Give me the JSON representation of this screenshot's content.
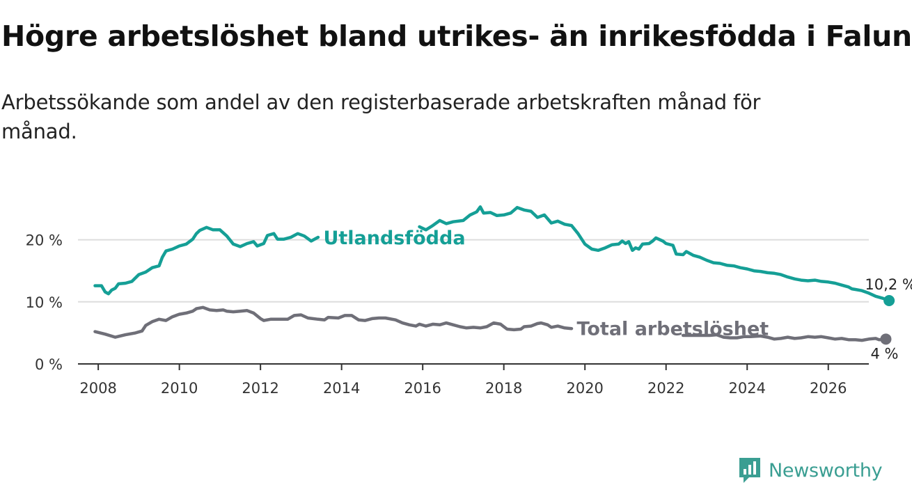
{
  "brand": {
    "name": "Newsworthy",
    "color": "#3a9e92"
  },
  "chart_data": {
    "type": "line",
    "title": "Högre arbetslöshet bland utrikes- än inrikesfödda i Falun",
    "subtitle": "Arbetssökande som andel av den registerbaserade arbetskraften månad för månad.",
    "xlabel": "",
    "ylabel": "",
    "xlim": [
      2007.5,
      2027.0
    ],
    "ylim": [
      0,
      25
    ],
    "grid": true,
    "x_ticks": [
      2008,
      2010,
      2012,
      2014,
      2016,
      2018,
      2020,
      2022,
      2024,
      2026
    ],
    "x_tick_labels": [
      "2008",
      "2010",
      "2012",
      "2014",
      "2016",
      "2018",
      "2020",
      "2022",
      "2024",
      "2026"
    ],
    "y_ticks": [
      0,
      10,
      20
    ],
    "y_tick_labels": [
      "0 %",
      "10 %",
      "20 %"
    ],
    "series": [
      {
        "name": "Utlandsfödda",
        "color": "#159f96",
        "end_label": "10,2 %",
        "points": [
          [
            2007.92,
            12.6
          ],
          [
            2008.08,
            12.6
          ],
          [
            2008.17,
            11.6
          ],
          [
            2008.25,
            11.3
          ],
          [
            2008.33,
            11.9
          ],
          [
            2008.42,
            12.2
          ],
          [
            2008.5,
            12.9
          ],
          [
            2008.67,
            13.0
          ],
          [
            2008.83,
            13.3
          ],
          [
            2009.0,
            14.4
          ],
          [
            2009.17,
            14.8
          ],
          [
            2009.33,
            15.5
          ],
          [
            2009.5,
            15.8
          ],
          [
            2009.58,
            17.2
          ],
          [
            2009.67,
            18.2
          ],
          [
            2009.83,
            18.5
          ],
          [
            2010.0,
            19.0
          ],
          [
            2010.17,
            19.3
          ],
          [
            2010.33,
            20.1
          ],
          [
            2010.42,
            21.0
          ],
          [
            2010.5,
            21.5
          ],
          [
            2010.67,
            22.0
          ],
          [
            2010.83,
            21.6
          ],
          [
            2011.0,
            21.6
          ],
          [
            2011.17,
            20.6
          ],
          [
            2011.33,
            19.3
          ],
          [
            2011.5,
            18.9
          ],
          [
            2011.67,
            19.4
          ],
          [
            2011.83,
            19.7
          ],
          [
            2011.92,
            19.0
          ],
          [
            2012.08,
            19.4
          ],
          [
            2012.17,
            20.7
          ],
          [
            2012.33,
            21.0
          ],
          [
            2012.42,
            20.1
          ],
          [
            2012.58,
            20.1
          ],
          [
            2012.75,
            20.4
          ],
          [
            2012.92,
            21.0
          ],
          [
            2013.08,
            20.6
          ],
          [
            2013.25,
            19.8
          ],
          [
            2013.42,
            20.4
          ],
          null,
          [
            2015.92,
            22.1
          ],
          [
            2016.08,
            21.6
          ],
          [
            2016.25,
            22.3
          ],
          [
            2016.42,
            23.1
          ],
          [
            2016.58,
            22.6
          ],
          [
            2016.75,
            22.9
          ],
          [
            2017.0,
            23.1
          ],
          [
            2017.17,
            24.0
          ],
          [
            2017.33,
            24.5
          ],
          [
            2017.42,
            25.3
          ],
          [
            2017.5,
            24.3
          ],
          [
            2017.67,
            24.4
          ],
          [
            2017.83,
            23.9
          ],
          [
            2018.0,
            24.0
          ],
          [
            2018.17,
            24.3
          ],
          [
            2018.33,
            25.2
          ],
          [
            2018.5,
            24.8
          ],
          [
            2018.67,
            24.6
          ],
          [
            2018.83,
            23.6
          ],
          [
            2019.0,
            24.0
          ],
          [
            2019.17,
            22.7
          ],
          [
            2019.33,
            23.0
          ],
          [
            2019.5,
            22.5
          ],
          [
            2019.67,
            22.3
          ],
          [
            2019.83,
            21.0
          ],
          [
            2020.0,
            19.3
          ],
          [
            2020.17,
            18.5
          ],
          [
            2020.33,
            18.3
          ],
          [
            2020.5,
            18.7
          ],
          [
            2020.67,
            19.2
          ],
          [
            2020.83,
            19.3
          ],
          [
            2020.92,
            19.8
          ],
          [
            2021.0,
            19.4
          ],
          [
            2021.08,
            19.7
          ],
          [
            2021.17,
            18.3
          ],
          [
            2021.25,
            18.7
          ],
          [
            2021.33,
            18.5
          ],
          [
            2021.42,
            19.3
          ],
          [
            2021.58,
            19.4
          ],
          [
            2021.67,
            19.8
          ],
          [
            2021.75,
            20.3
          ],
          [
            2021.92,
            19.8
          ],
          [
            2022.0,
            19.4
          ],
          [
            2022.17,
            19.1
          ],
          [
            2022.25,
            17.7
          ],
          [
            2022.42,
            17.6
          ],
          [
            2022.5,
            18.1
          ],
          [
            2022.67,
            17.5
          ],
          [
            2022.83,
            17.2
          ],
          [
            2023.0,
            16.7
          ],
          [
            2023.17,
            16.3
          ],
          [
            2023.33,
            16.2
          ],
          [
            2023.5,
            15.9
          ],
          [
            2023.67,
            15.8
          ],
          [
            2023.83,
            15.5
          ],
          [
            2024.0,
            15.3
          ],
          [
            2024.17,
            15.0
          ],
          [
            2024.33,
            14.9
          ],
          [
            2024.5,
            14.7
          ],
          [
            2024.67,
            14.6
          ],
          [
            2024.83,
            14.4
          ],
          [
            2025.0,
            14.0
          ],
          [
            2025.17,
            13.7
          ],
          [
            2025.33,
            13.5
          ],
          [
            2025.5,
            13.4
          ],
          [
            2025.67,
            13.5
          ],
          [
            2025.83,
            13.3
          ],
          [
            2026.0,
            13.2
          ],
          [
            2026.17,
            13.0
          ],
          [
            2026.33,
            12.7
          ],
          [
            2026.5,
            12.4
          ],
          [
            2026.58,
            12.1
          ],
          [
            2026.67,
            12.0
          ],
          [
            2026.83,
            11.8
          ],
          [
            2027.0,
            11.4
          ],
          [
            2027.17,
            10.9
          ],
          [
            2027.33,
            10.6
          ],
          [
            2027.5,
            10.2
          ]
        ]
      },
      {
        "name": "Total arbetslöshet",
        "color": "#6f6f78",
        "end_label": "4 %",
        "points": [
          [
            2007.92,
            5.2
          ],
          [
            2008.17,
            4.8
          ],
          [
            2008.42,
            4.3
          ],
          [
            2008.67,
            4.7
          ],
          [
            2008.92,
            5.0
          ],
          [
            2009.08,
            5.3
          ],
          [
            2009.17,
            6.2
          ],
          [
            2009.33,
            6.8
          ],
          [
            2009.5,
            7.2
          ],
          [
            2009.67,
            7.0
          ],
          [
            2009.83,
            7.6
          ],
          [
            2010.0,
            8.0
          ],
          [
            2010.17,
            8.2
          ],
          [
            2010.33,
            8.5
          ],
          [
            2010.42,
            8.9
          ],
          [
            2010.58,
            9.1
          ],
          [
            2010.75,
            8.7
          ],
          [
            2010.92,
            8.6
          ],
          [
            2011.08,
            8.7
          ],
          [
            2011.17,
            8.5
          ],
          [
            2011.33,
            8.4
          ],
          [
            2011.5,
            8.5
          ],
          [
            2011.67,
            8.6
          ],
          [
            2011.83,
            8.2
          ],
          [
            2012.0,
            7.3
          ],
          [
            2012.08,
            7.0
          ],
          [
            2012.25,
            7.2
          ],
          [
            2012.5,
            7.2
          ],
          [
            2012.67,
            7.2
          ],
          [
            2012.83,
            7.8
          ],
          [
            2013.0,
            7.9
          ],
          [
            2013.17,
            7.4
          ],
          [
            2013.42,
            7.2
          ],
          [
            2013.58,
            7.1
          ],
          [
            2013.67,
            7.5
          ],
          [
            2013.92,
            7.4
          ],
          [
            2014.08,
            7.8
          ],
          [
            2014.25,
            7.8
          ],
          [
            2014.42,
            7.1
          ],
          [
            2014.58,
            7.0
          ],
          [
            2014.75,
            7.3
          ],
          [
            2014.92,
            7.4
          ],
          [
            2015.08,
            7.4
          ],
          [
            2015.33,
            7.1
          ],
          [
            2015.5,
            6.6
          ],
          [
            2015.67,
            6.3
          ],
          [
            2015.83,
            6.1
          ],
          [
            2015.92,
            6.4
          ],
          [
            2016.08,
            6.1
          ],
          [
            2016.25,
            6.4
          ],
          [
            2016.42,
            6.3
          ],
          [
            2016.58,
            6.6
          ],
          [
            2016.75,
            6.3
          ],
          [
            2016.92,
            6.0
          ],
          [
            2017.08,
            5.8
          ],
          [
            2017.25,
            5.9
          ],
          [
            2017.42,
            5.8
          ],
          [
            2017.58,
            6.0
          ],
          [
            2017.75,
            6.6
          ],
          [
            2017.92,
            6.4
          ],
          [
            2018.0,
            6.0
          ],
          [
            2018.08,
            5.6
          ],
          [
            2018.25,
            5.5
          ],
          [
            2018.42,
            5.6
          ],
          [
            2018.5,
            6.0
          ],
          [
            2018.67,
            6.1
          ],
          [
            2018.83,
            6.5
          ],
          [
            2018.92,
            6.6
          ],
          [
            2019.08,
            6.3
          ],
          [
            2019.17,
            5.9
          ],
          [
            2019.33,
            6.1
          ],
          [
            2019.5,
            5.8
          ],
          [
            2019.67,
            5.7
          ],
          null,
          [
            2022.42,
            4.6
          ],
          [
            2022.58,
            4.6
          ],
          [
            2022.83,
            4.6
          ],
          [
            2023.08,
            4.6
          ],
          [
            2023.25,
            4.7
          ],
          [
            2023.42,
            4.3
          ],
          [
            2023.58,
            4.2
          ],
          [
            2023.75,
            4.2
          ],
          [
            2023.92,
            4.4
          ],
          [
            2024.08,
            4.4
          ],
          [
            2024.33,
            4.5
          ],
          [
            2024.5,
            4.3
          ],
          [
            2024.67,
            4.0
          ],
          [
            2024.83,
            4.1
          ],
          [
            2025.0,
            4.3
          ],
          [
            2025.17,
            4.1
          ],
          [
            2025.33,
            4.2
          ],
          [
            2025.5,
            4.4
          ],
          [
            2025.67,
            4.3
          ],
          [
            2025.83,
            4.4
          ],
          [
            2026.0,
            4.2
          ],
          [
            2026.17,
            4.0
          ],
          [
            2026.33,
            4.1
          ],
          [
            2026.5,
            3.9
          ],
          [
            2026.67,
            3.9
          ],
          [
            2026.83,
            3.8
          ],
          [
            2027.0,
            4.0
          ],
          [
            2027.17,
            4.1
          ],
          [
            2027.25,
            3.9
          ],
          [
            2027.42,
            4.0
          ]
        ]
      }
    ]
  }
}
